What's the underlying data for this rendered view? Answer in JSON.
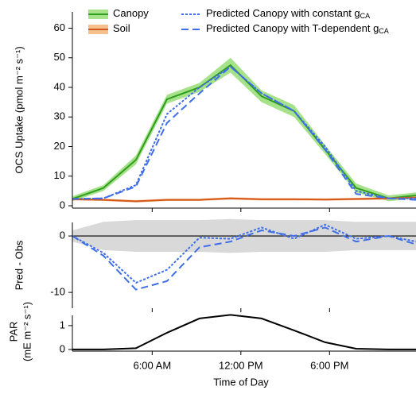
{
  "chart_data": [
    {
      "type": "line",
      "y_label": "OCS Uptake (pmol m⁻² s⁻¹)",
      "x": [
        0.6,
        2.7,
        4.9,
        7.0,
        9.2,
        11.3,
        13.4,
        15.6,
        17.7,
        19.8,
        22.0,
        23.85
      ],
      "xlim": [
        0.6,
        23.85
      ],
      "ylim": [
        -0.8,
        65.5
      ],
      "yticks": [
        0,
        10,
        20,
        30,
        40,
        50,
        60
      ],
      "series": [
        {
          "name": "Canopy",
          "color": "#2e9e1e",
          "band_color": "#a6e28a",
          "dash": "solid",
          "values": [
            2.3,
            6,
            15.5,
            36,
            40,
            47.5,
            37,
            32,
            19,
            6,
            2.5,
            3.5
          ],
          "lower": [
            1.5,
            5,
            14,
            34.5,
            38.5,
            45,
            35,
            30,
            17.5,
            4.5,
            1.5,
            2.5
          ],
          "upper": [
            3.2,
            7,
            17,
            37.5,
            41.5,
            50,
            39,
            34,
            20.5,
            7.5,
            3.5,
            4.5
          ]
        },
        {
          "name": "Soil",
          "color": "#d4581a",
          "band_color": "#f6c08f",
          "dash": "solid",
          "values": [
            2.2,
            2,
            1.5,
            2,
            2,
            2.5,
            2.2,
            2.2,
            2.1,
            2.3,
            2.5,
            2.8
          ],
          "lower": [
            1.8,
            1.6,
            1.1,
            1.6,
            1.6,
            2.1,
            1.8,
            1.8,
            1.7,
            1.9,
            2.1,
            2.4
          ],
          "upper": [
            2.6,
            2.4,
            1.9,
            2.4,
            2.4,
            2.9,
            2.6,
            2.6,
            2.5,
            2.7,
            2.9,
            3.2
          ]
        },
        {
          "name": "Predicted Canopy with constant g",
          "subscript": "CA",
          "color": "#3f6ee8",
          "dash": "dotted",
          "values": [
            2.3,
            2.5,
            7,
            31,
            40,
            47,
            38,
            32,
            20,
            5,
            2.5,
            2.5
          ]
        },
        {
          "name": "Predicted Canopy with T-dependent g",
          "subscript": "CA",
          "color": "#3f6ee8",
          "dash": "dashed",
          "values": [
            2.3,
            2.5,
            6.5,
            28,
            38,
            47,
            38,
            32,
            19,
            4,
            2.5,
            2
          ]
        }
      ]
    },
    {
      "type": "line",
      "y_label": "Pred - Obs",
      "x": [
        0.6,
        2.7,
        4.9,
        7.0,
        9.2,
        11.3,
        13.4,
        15.6,
        17.7,
        19.8,
        22.0,
        23.85
      ],
      "xlim": [
        0.6,
        23.85
      ],
      "ylim": [
        -12.8,
        2.4
      ],
      "yticks": [
        0,
        -10
      ],
      "band": {
        "color": "#d9d9d9",
        "lower": [
          -1,
          -2.5,
          -2.8,
          -2.8,
          -2.8,
          -3,
          -2.8,
          -2.8,
          -2.8,
          -2.5,
          -2.5,
          -2.5
        ],
        "upper": [
          1,
          2.5,
          2.8,
          2.8,
          2.8,
          3,
          2.8,
          2.8,
          2.8,
          2.5,
          2.5,
          2.5
        ]
      },
      "series": [
        {
          "color": "#3f6ee8",
          "dash": "dotted",
          "values": [
            0,
            -3,
            -8.3,
            -6,
            -0.3,
            -0.5,
            1.5,
            -0.5,
            2,
            -0.5,
            0,
            -1
          ]
        },
        {
          "color": "#3f6ee8",
          "dash": "dashed",
          "values": [
            0,
            -3.5,
            -9.5,
            -8,
            -2,
            -1,
            1,
            0,
            1.5,
            -1,
            0,
            -1.5
          ]
        }
      ]
    },
    {
      "type": "line",
      "y_label": [
        "PAR",
        "(mE m⁻² s⁻¹)"
      ],
      "x_label": "Time of Day",
      "x": [
        0.6,
        2.7,
        4.9,
        7.0,
        9.2,
        11.3,
        13.4,
        15.6,
        17.7,
        19.8,
        22.0,
        23.85
      ],
      "xlim": [
        0.6,
        23.85
      ],
      "ylim": [
        -0.07,
        1.43
      ],
      "yticks": [
        0,
        1
      ],
      "xticks": [
        {
          "value": 6,
          "label": "6:00 AM"
        },
        {
          "value": 12,
          "label": "12:00 PM"
        },
        {
          "value": 18,
          "label": "6:00 PM"
        }
      ],
      "series": [
        {
          "color": "#000000",
          "dash": "solid",
          "values": [
            0,
            0,
            0.05,
            0.7,
            1.3,
            1.45,
            1.3,
            0.8,
            0.3,
            0.03,
            0,
            0
          ]
        }
      ]
    }
  ]
}
